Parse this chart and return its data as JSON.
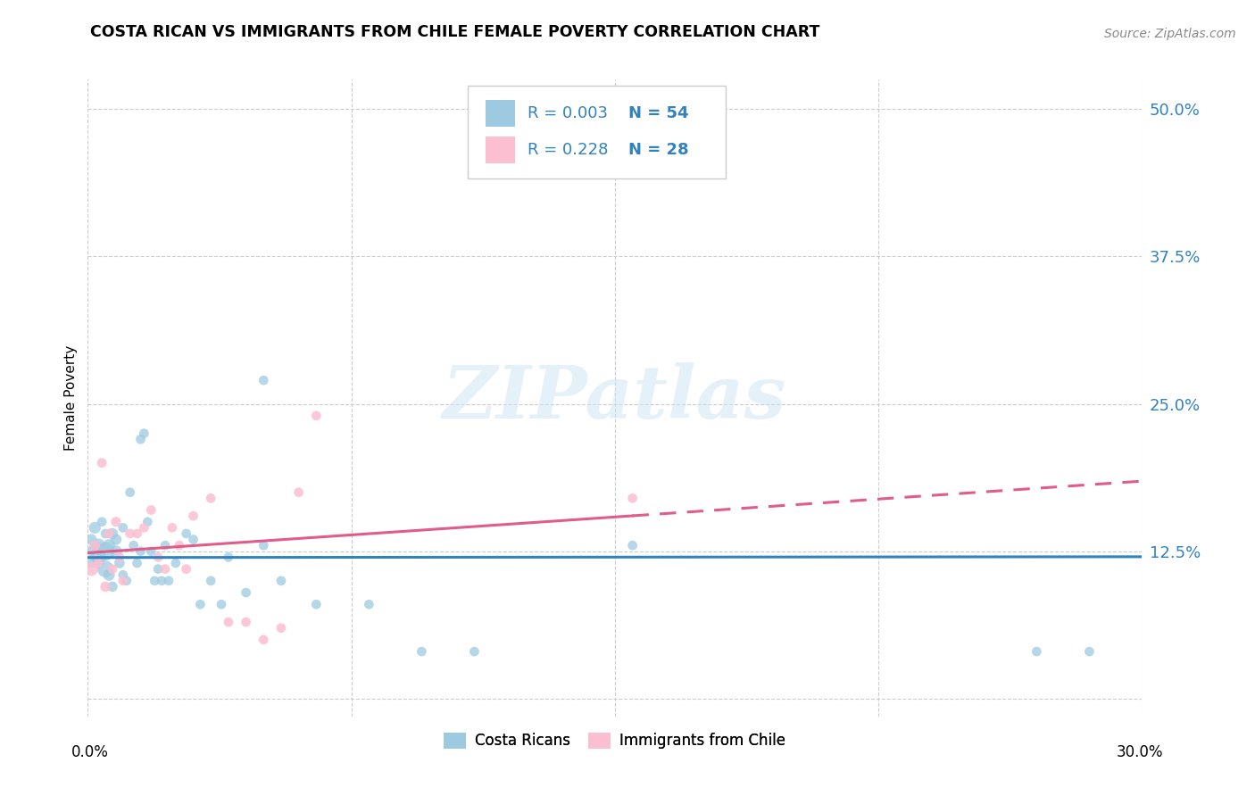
{
  "title": "COSTA RICAN VS IMMIGRANTS FROM CHILE FEMALE POVERTY CORRELATION CHART",
  "source": "Source: ZipAtlas.com",
  "ylabel": "Female Poverty",
  "yticks": [
    0.0,
    0.125,
    0.25,
    0.375,
    0.5
  ],
  "ytick_labels": [
    "",
    "12.5%",
    "25.0%",
    "37.5%",
    "50.0%"
  ],
  "xlim": [
    0.0,
    0.3
  ],
  "ylim": [
    -0.015,
    0.525
  ],
  "blue_color": "#9ecae1",
  "pink_color": "#fcbfd2",
  "blue_line_color": "#3182bd",
  "pink_line_color": "#e05c8a",
  "grid_color": "#cccccc",
  "watermark": "ZIPatlas",
  "costa_ricans_x": [
    0.001,
    0.001,
    0.001,
    0.002,
    0.002,
    0.002,
    0.003,
    0.003,
    0.004,
    0.004,
    0.005,
    0.005,
    0.005,
    0.006,
    0.006,
    0.007,
    0.007,
    0.008,
    0.008,
    0.009,
    0.01,
    0.01,
    0.011,
    0.012,
    0.013,
    0.014,
    0.015,
    0.015,
    0.016,
    0.017,
    0.018,
    0.019,
    0.02,
    0.021,
    0.022,
    0.023,
    0.025,
    0.028,
    0.03,
    0.032,
    0.035,
    0.038,
    0.04,
    0.045,
    0.05,
    0.055,
    0.065,
    0.08,
    0.095,
    0.11,
    0.05,
    0.155,
    0.27,
    0.285
  ],
  "costa_ricans_y": [
    0.135,
    0.125,
    0.115,
    0.145,
    0.13,
    0.12,
    0.13,
    0.115,
    0.15,
    0.12,
    0.125,
    0.11,
    0.14,
    0.13,
    0.105,
    0.14,
    0.095,
    0.125,
    0.135,
    0.115,
    0.145,
    0.105,
    0.1,
    0.175,
    0.13,
    0.115,
    0.22,
    0.125,
    0.225,
    0.15,
    0.125,
    0.1,
    0.11,
    0.1,
    0.13,
    0.1,
    0.115,
    0.14,
    0.135,
    0.08,
    0.1,
    0.08,
    0.12,
    0.09,
    0.13,
    0.1,
    0.08,
    0.08,
    0.04,
    0.04,
    0.27,
    0.13,
    0.04,
    0.04
  ],
  "costa_ricans_size": [
    80,
    70,
    60,
    90,
    70,
    60,
    120,
    80,
    60,
    60,
    220,
    180,
    60,
    100,
    90,
    80,
    70,
    90,
    80,
    70,
    60,
    60,
    60,
    60,
    60,
    60,
    60,
    60,
    60,
    60,
    60,
    60,
    60,
    60,
    60,
    60,
    60,
    60,
    60,
    60,
    60,
    60,
    60,
    60,
    60,
    60,
    60,
    60,
    60,
    60,
    60,
    60,
    60,
    60
  ],
  "chile_x": [
    0.001,
    0.002,
    0.003,
    0.004,
    0.005,
    0.006,
    0.007,
    0.008,
    0.009,
    0.01,
    0.012,
    0.014,
    0.016,
    0.018,
    0.02,
    0.022,
    0.024,
    0.026,
    0.028,
    0.03,
    0.035,
    0.04,
    0.045,
    0.05,
    0.055,
    0.06,
    0.065,
    0.155
  ],
  "chile_y": [
    0.11,
    0.13,
    0.115,
    0.2,
    0.095,
    0.14,
    0.11,
    0.15,
    0.12,
    0.1,
    0.14,
    0.14,
    0.145,
    0.16,
    0.12,
    0.11,
    0.145,
    0.13,
    0.11,
    0.155,
    0.17,
    0.065,
    0.065,
    0.05,
    0.06,
    0.175,
    0.24,
    0.17
  ],
  "chile_size": [
    120,
    70,
    60,
    60,
    70,
    60,
    60,
    65,
    60,
    60,
    60,
    60,
    60,
    60,
    60,
    60,
    60,
    60,
    60,
    60,
    60,
    60,
    60,
    60,
    60,
    60,
    60,
    60
  ]
}
